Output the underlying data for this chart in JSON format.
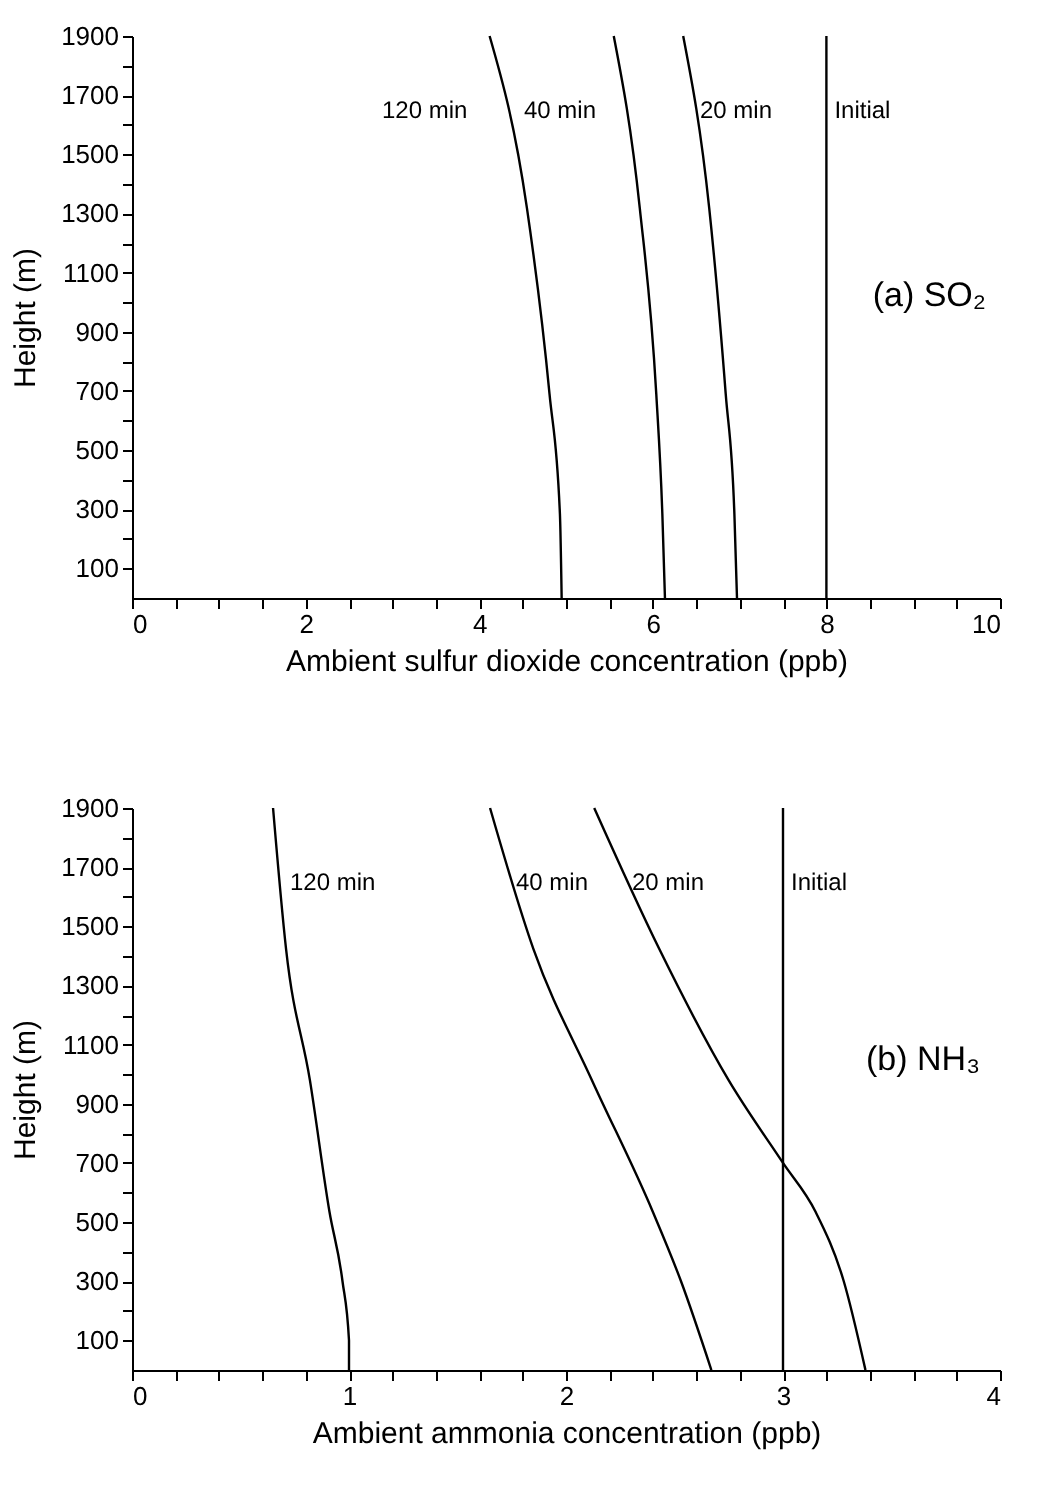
{
  "chart_data": [
    {
      "type": "line",
      "xlabel": "Ambient sulfur dioxide concentration (ppb)",
      "ylabel": "Height (m)",
      "xlim": [
        0,
        10
      ],
      "ylim": [
        0,
        1900
      ],
      "grid": false,
      "marker": "none",
      "line_style": "solid",
      "xticks": [
        0,
        {
          "value": 0.5,
          "label": null
        },
        {
          "value": 1,
          "label": null
        },
        {
          "value": 1.5,
          "label": null
        },
        2,
        {
          "value": 2.5,
          "label": null
        },
        {
          "value": 3,
          "label": null
        },
        {
          "value": 3.5,
          "label": null
        },
        4,
        {
          "value": 4.5,
          "label": null
        },
        {
          "value": 5,
          "label": null
        },
        {
          "value": 5.5,
          "label": null
        },
        6,
        {
          "value": 6.5,
          "label": null
        },
        {
          "value": 7,
          "label": null
        },
        {
          "value": 7.5,
          "label": null
        },
        8,
        {
          "value": 8.5,
          "label": null
        },
        {
          "value": 9,
          "label": null
        },
        {
          "value": 9.5,
          "label": null
        },
        10
      ],
      "yticks": [
        100,
        {
          "value": 200,
          "label": null
        },
        300,
        {
          "value": 400,
          "label": null
        },
        500,
        {
          "value": 600,
          "label": null
        },
        700,
        {
          "value": 800,
          "label": null
        },
        900,
        {
          "value": 1000,
          "label": null
        },
        1100,
        {
          "value": 1200,
          "label": null
        },
        1300,
        {
          "value": 1400,
          "label": null
        },
        1500,
        {
          "value": 1600,
          "label": null
        },
        1700,
        {
          "value": 1800,
          "label": null
        },
        1900
      ],
      "series": [
        {
          "color": "#000000",
          "x": [
            4.12,
            4.55,
            4.81,
            4.93,
            4.95
          ],
          "values": [
            1900,
            1318,
            690,
            284,
            0
          ]
        },
        {
          "color": "#000000",
          "x": [
            5.55,
            5.85,
            6.04,
            6.11,
            6.14
          ],
          "values": [
            1900,
            1318,
            690,
            284,
            0
          ]
        },
        {
          "color": "#000000",
          "x": [
            6.35,
            6.65,
            6.84,
            6.94,
            6.97
          ],
          "values": [
            1900,
            1318,
            690,
            284,
            0
          ]
        }
      ],
      "ref_lines": [
        {
          "axis": "x",
          "value": 8,
          "label": "Initial",
          "color": "#000000"
        }
      ],
      "annotations": [
        "120 min",
        "40 min",
        "20 min",
        "(a) SO₂"
      ]
    },
    {
      "type": "line",
      "xlabel": "Ambient ammonia concentration (ppb)",
      "ylabel": "Height (m)",
      "xlim": [
        0,
        4
      ],
      "ylim": [
        0,
        1900
      ],
      "grid": false,
      "marker": "none",
      "line_style": "solid",
      "xticks": [
        0,
        {
          "value": 0.2,
          "label": null
        },
        {
          "value": 0.4,
          "label": null
        },
        {
          "value": 0.6,
          "label": null
        },
        {
          "value": 0.8,
          "label": null
        },
        1,
        {
          "value": 1.2,
          "label": null
        },
        {
          "value": 1.4,
          "label": null
        },
        {
          "value": 1.6,
          "label": null
        },
        {
          "value": 1.8,
          "label": null
        },
        2,
        {
          "value": 2.2,
          "label": null
        },
        {
          "value": 2.4,
          "label": null
        },
        {
          "value": 2.6,
          "label": null
        },
        {
          "value": 2.8,
          "label": null
        },
        3,
        {
          "value": 3.2,
          "label": null
        },
        {
          "value": 3.4,
          "label": null
        },
        {
          "value": 3.6,
          "label": null
        },
        {
          "value": 3.8,
          "label": null
        },
        4
      ],
      "yticks": [
        100,
        {
          "value": 200,
          "label": null
        },
        300,
        {
          "value": 400,
          "label": null
        },
        500,
        {
          "value": 600,
          "label": null
        },
        700,
        {
          "value": 800,
          "label": null
        },
        900,
        {
          "value": 1000,
          "label": null
        },
        1100,
        {
          "value": 1200,
          "label": null
        },
        1300,
        {
          "value": 1400,
          "label": null
        },
        1500,
        {
          "value": 1600,
          "label": null
        },
        1700,
        {
          "value": 1800,
          "label": null
        },
        1900
      ],
      "series": [
        {
          "color": "#000000",
          "x": [
            0.65,
            0.71,
            0.82,
            0.91,
            0.97,
            1.0,
            1.0
          ],
          "values": [
            1900,
            1423,
            979,
            535,
            300,
            100,
            0
          ]
        },
        {
          "color": "#000000",
          "x": [
            1.65,
            1.85,
            2.12,
            2.4,
            2.53,
            2.67
          ],
          "values": [
            1900,
            1423,
            979,
            535,
            300,
            0
          ]
        },
        {
          "color": "#000000",
          "x": [
            2.13,
            2.43,
            2.75,
            3.0,
            3.15,
            3.28,
            3.38
          ],
          "values": [
            1900,
            1423,
            979,
            700,
            535,
            300,
            0
          ]
        }
      ],
      "ref_lines": [
        {
          "axis": "x",
          "value": 3,
          "label": "Initial",
          "color": "#000000"
        }
      ],
      "annotations": [
        "120 min",
        "40 min",
        "20 min",
        "(b) NH₃"
      ]
    }
  ]
}
